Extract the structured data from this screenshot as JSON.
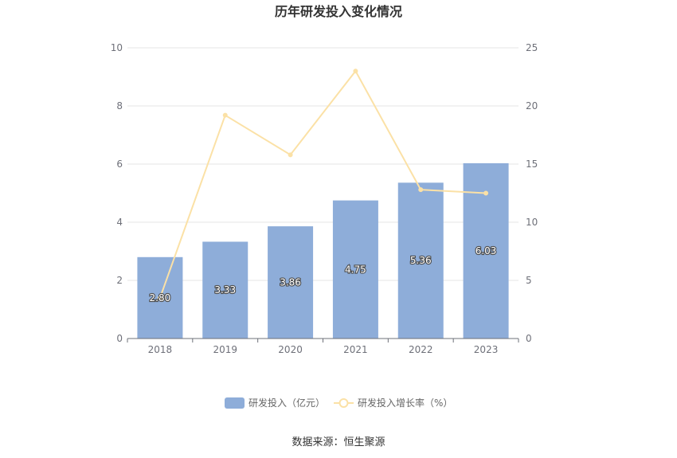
{
  "chart_data": {
    "type": "bar",
    "title": "历年研发投入变化情况",
    "categories": [
      "2018",
      "2019",
      "2020",
      "2021",
      "2022",
      "2023"
    ],
    "series": [
      {
        "name": "研发投入（亿元）",
        "type": "bar",
        "axis": "left",
        "values": [
          2.8,
          3.33,
          3.86,
          4.75,
          5.36,
          6.03
        ],
        "labels": [
          "2.80",
          "3.33",
          "3.86",
          "4.75",
          "5.36",
          "6.03"
        ],
        "color": "#8eadd9"
      },
      {
        "name": "研发投入增长率（%）",
        "type": "line",
        "axis": "right",
        "values": [
          3.5,
          19.2,
          15.8,
          23.0,
          12.8,
          12.5
        ],
        "color": "#fbe1a6"
      }
    ],
    "y_left": {
      "ylim": [
        0,
        10
      ],
      "ticks": [
        "0",
        "2",
        "4",
        "6",
        "8",
        "10"
      ]
    },
    "y_right": {
      "ylim": [
        0,
        25
      ],
      "ticks": [
        "0",
        "5",
        "10",
        "15",
        "20",
        "25"
      ]
    },
    "grid": true,
    "legend_position": "bottom-center"
  },
  "source": "数据来源：恒生聚源",
  "colors": {
    "text": "#666666",
    "title": "#333333",
    "grid": "#e6e6e6",
    "axis": "#6e7079"
  }
}
